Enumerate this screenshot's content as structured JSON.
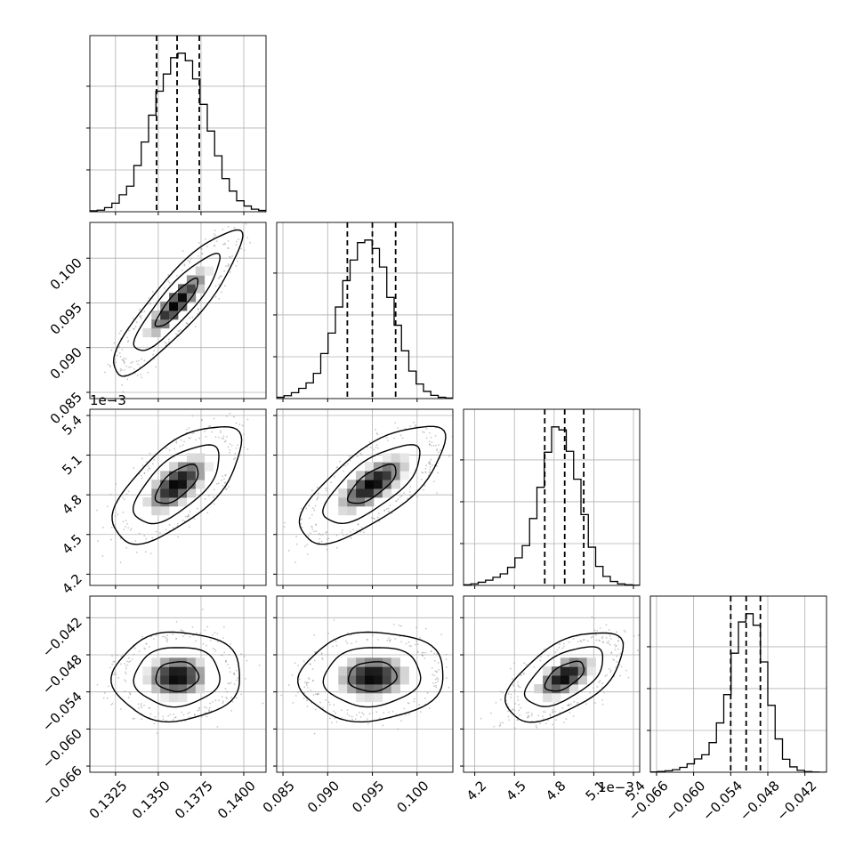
{
  "chart_data": {
    "type": "corner",
    "parameters": [
      {
        "index": 0,
        "range": [
          0.131,
          0.1413
        ],
        "ticks": [
          "0.1325",
          "0.1350",
          "0.1375",
          "0.1400"
        ],
        "tick_values": [
          0.1325,
          0.135,
          0.1375,
          0.14
        ],
        "quantiles": [
          0.1349,
          0.1361,
          0.1374
        ],
        "offset_text": ""
      },
      {
        "index": 1,
        "range": [
          0.0843,
          0.104
        ],
        "ticks": [
          "0.085",
          "0.090",
          "0.095",
          "0.100"
        ],
        "tick_values": [
          0.085,
          0.09,
          0.095,
          0.1
        ],
        "quantiles": [
          0.0922,
          0.095,
          0.0976
        ],
        "offset_text": ""
      },
      {
        "index": 2,
        "range": [
          4.115,
          5.447
        ],
        "ticks": [
          "4.2",
          "4.5",
          "4.8",
          "5.1",
          "5.4"
        ],
        "tick_values": [
          4.2,
          4.5,
          4.8,
          5.1,
          5.4
        ],
        "quantiles": [
          4.729,
          4.88,
          5.024
        ],
        "offset_text": "1e−3"
      },
      {
        "index": 3,
        "range": [
          -0.067,
          -0.0385
        ],
        "ticks": [
          "−0.066",
          "−0.060",
          "−0.054",
          "−0.048",
          "−0.042"
        ],
        "tick_values": [
          -0.066,
          -0.06,
          -0.054,
          -0.048,
          -0.042
        ],
        "quantiles": [
          -0.054,
          -0.0515,
          -0.0492
        ],
        "offset_text": ""
      }
    ],
    "histograms": [
      {
        "param": 0,
        "counts": [
          0.6,
          1.0,
          2.6,
          5.4,
          10.7,
          16.1,
          29.1,
          43.9,
          60.8,
          75.9,
          86.7,
          97.0,
          99.8,
          95.1,
          83.6,
          67.6,
          50.8,
          35.2,
          20.9,
          13.0,
          6.9,
          3.6,
          1.6,
          0.8
        ]
      },
      {
        "param": 1,
        "counts": [
          0.8,
          1.8,
          3.7,
          6.4,
          9.8,
          15.8,
          28.2,
          41.0,
          57.3,
          73.8,
          86.7,
          97.6,
          99.2,
          93.9,
          82.3,
          63.3,
          45.9,
          29.9,
          17.2,
          9.1,
          4.5,
          2.0,
          0.8,
          0.3
        ]
      },
      {
        "param": 2,
        "counts": [
          0.4,
          1.0,
          2.0,
          3.3,
          5.1,
          7.3,
          11.4,
          17.4,
          25.1,
          42.2,
          61.9,
          84.0,
          100.0,
          98.1,
          84.6,
          67.0,
          44.7,
          24.1,
          12.0,
          5.7,
          2.5,
          1.0,
          0.4,
          0.1
        ]
      },
      {
        "param": 3,
        "counts": [
          0.2,
          0.5,
          0.9,
          1.6,
          3.1,
          5.3,
          8.4,
          11.0,
          18.7,
          31.1,
          49.0,
          75.1,
          94.8,
          100.0,
          92.7,
          69.6,
          42.2,
          21.0,
          8.2,
          3.4,
          1.2,
          0.4,
          0.1,
          0.0
        ]
      }
    ],
    "correlations": {
      "1_0": 0.88,
      "2_0": 0.65,
      "2_1": 0.72,
      "3_0": 0.05,
      "3_1": 0.08,
      "3_2": 0.58
    },
    "contour_levels": [
      0.393,
      0.865,
      0.989
    ],
    "colors": {
      "line": "#000000",
      "grid": "#b0b0b0",
      "points": "#9a9a9a"
    }
  }
}
